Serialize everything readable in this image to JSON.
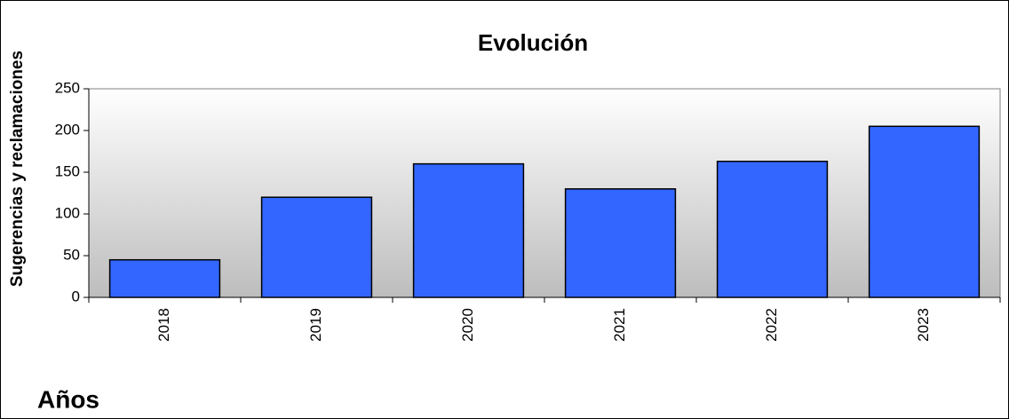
{
  "chart_data": {
    "type": "bar",
    "title": "Evolución",
    "y_label": "Sugerencias y reclamaciones",
    "x_label": "Años",
    "categories": [
      "2018",
      "2019",
      "2020",
      "2021",
      "2022",
      "2023"
    ],
    "values": [
      45,
      120,
      160,
      130,
      163,
      205
    ],
    "color": "#3366ff",
    "ylim": [
      0,
      250
    ],
    "yticks": [
      0,
      50,
      100,
      150,
      200,
      250
    ],
    "grid": false
  }
}
